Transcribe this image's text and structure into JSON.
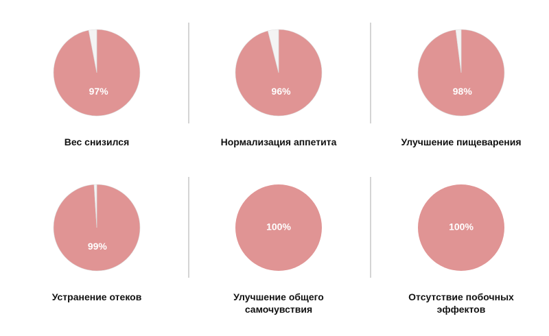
{
  "chart_data": [
    {
      "type": "pie",
      "title": "Вес снизился",
      "values": [
        97,
        3
      ],
      "value_labels": [
        "97%",
        null
      ],
      "colors": [
        "#e09494",
        "#f4f4f4"
      ]
    },
    {
      "type": "pie",
      "title": "Нормализация аппетита",
      "values": [
        96,
        4
      ],
      "value_labels": [
        "96%",
        null
      ],
      "colors": [
        "#e09494",
        "#f4f4f4"
      ]
    },
    {
      "type": "pie",
      "title": "Улучшение пищеварения",
      "values": [
        98,
        2
      ],
      "value_labels": [
        "98%",
        null
      ],
      "colors": [
        "#e09494",
        "#f4f4f4"
      ]
    },
    {
      "type": "pie",
      "title": "Устранение отеков",
      "values": [
        99,
        1
      ],
      "value_labels": [
        "99%",
        null
      ],
      "colors": [
        "#e09494",
        "#f4f4f4"
      ]
    },
    {
      "type": "pie",
      "title": "Улучшение общего\nсамочувствия",
      "values": [
        100
      ],
      "value_labels": [
        "100%"
      ],
      "colors": [
        "#e09494"
      ]
    },
    {
      "type": "pie",
      "title": "Отсутствие побочных\nэффектов",
      "values": [
        100
      ],
      "value_labels": [
        "100%"
      ],
      "colors": [
        "#e09494"
      ]
    }
  ]
}
